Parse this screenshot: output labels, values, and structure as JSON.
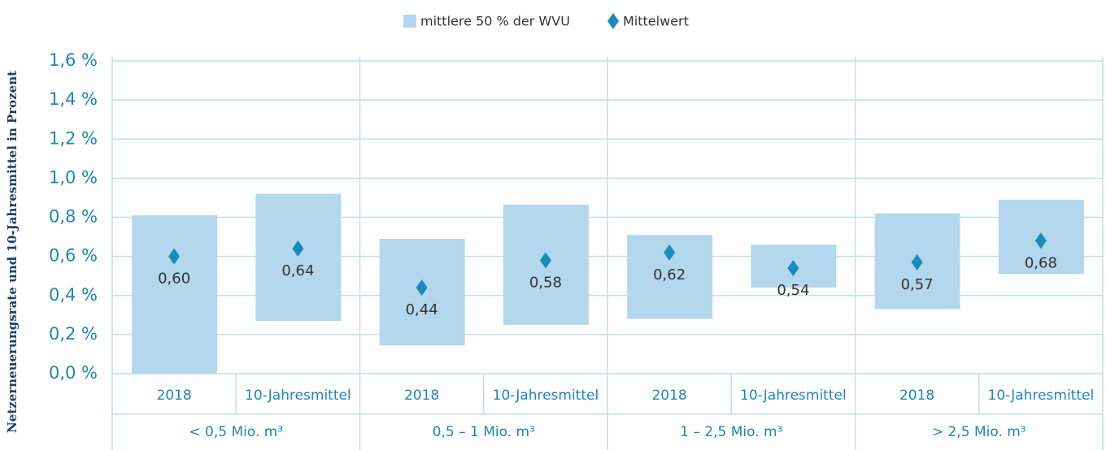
{
  "chart_data": {
    "type": "range-bar",
    "y_label": "Netzerneuerungsrate und 10-Jahresmittel in Prozent",
    "categories": [
      "2018",
      "10-Jahresmittel",
      "2018",
      "10-Jahresmittel",
      "2018",
      "10-Jahresmittel",
      "2018",
      "10-Jahresmittel"
    ],
    "groups": [
      "< 0,5 Mio. m³",
      "0,5 – 1 Mio. m³",
      "1 – 2,5 Mio. m³",
      "> 2,5 Mio. m³"
    ],
    "series": [
      {
        "name": "mittlere 50 % der WVU",
        "color": "#b3d7ec",
        "low": [
          0.0,
          0.27,
          0.145,
          0.25,
          0.28,
          0.44,
          0.33,
          0.51
        ],
        "high": [
          0.81,
          0.92,
          0.69,
          0.865,
          0.71,
          0.66,
          0.82,
          0.89
        ]
      },
      {
        "name": "Mittelwert",
        "color": "#1a8bbd",
        "values": [
          0.6,
          0.64,
          0.44,
          0.58,
          0.62,
          0.54,
          0.57,
          0.68
        ],
        "value_labels": [
          "0,60",
          "0,64",
          "0,44",
          "0,58",
          "0,62",
          "0,54",
          "0,57",
          "0,68"
        ]
      }
    ],
    "ylim": [
      0,
      1.6
    ],
    "yticks": [
      {
        "value": 0,
        "label": "0,0 %"
      },
      {
        "value": 0.2,
        "label": "0,2 %"
      },
      {
        "value": 0.4,
        "label": "0,4 %"
      },
      {
        "value": 0.6,
        "label": "0,6 %"
      },
      {
        "value": 0.8,
        "label": "0,8 %"
      },
      {
        "value": 1.0,
        "label": "1,0 %"
      },
      {
        "value": 1.2,
        "label": "1,2 %"
      },
      {
        "value": 1.4,
        "label": "1,4 %"
      },
      {
        "value": 1.6,
        "label": "1,6 %"
      }
    ],
    "grid": true
  }
}
